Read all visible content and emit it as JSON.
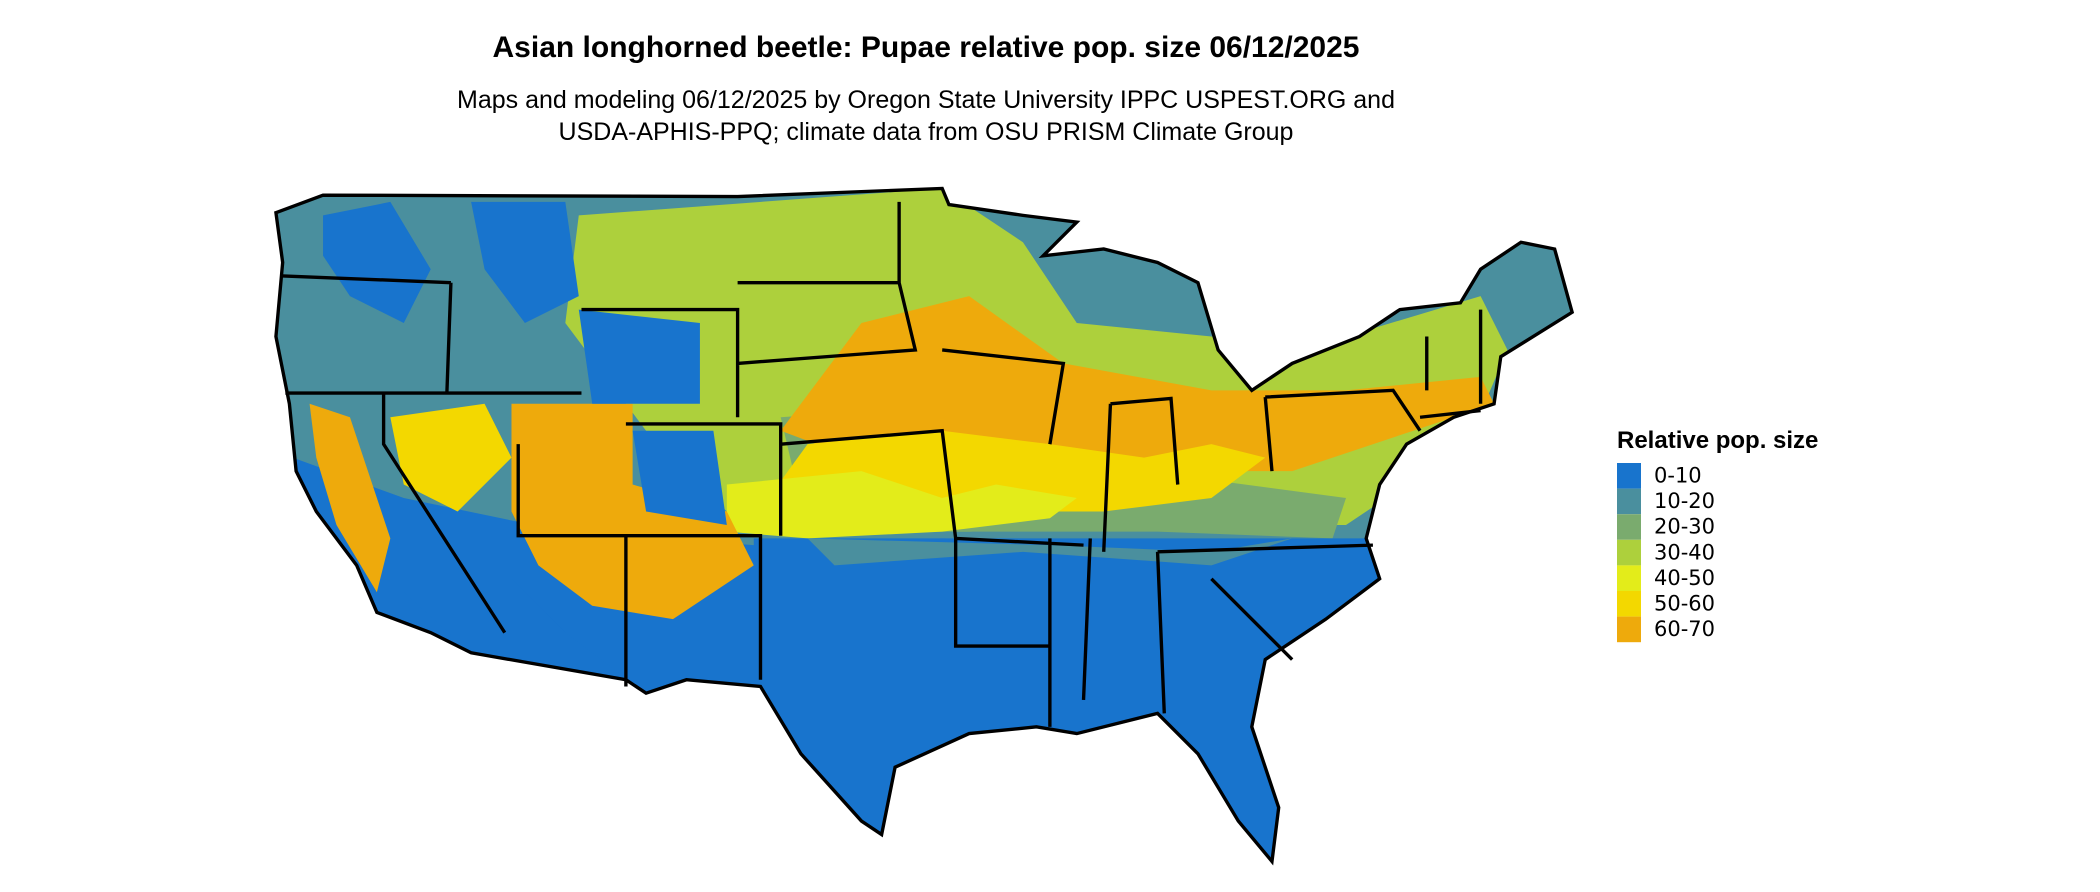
{
  "header": {
    "title": "Asian longhorned beetle: Pupae relative pop. size 06/12/2025",
    "subtitle_lines": [
      "Maps and modeling 06/12/2025 by Oregon State University IPPC USPEST.ORG and",
      "USDA-APHIS-PPQ; climate data from OSU PRISM Climate Group"
    ]
  },
  "legend": {
    "title": "Relative pop. size",
    "items": [
      {
        "label": "0-10",
        "color": "#1874cd"
      },
      {
        "label": "10-20",
        "color": "#4a8f9e"
      },
      {
        "label": "20-30",
        "color": "#7aab6e"
      },
      {
        "label": "30-40",
        "color": "#add03c"
      },
      {
        "label": "40-50",
        "color": "#e3ec1a"
      },
      {
        "label": "50-60",
        "color": "#f3d800"
      },
      {
        "label": "60-70",
        "color": "#eeaa0c"
      }
    ]
  }
}
